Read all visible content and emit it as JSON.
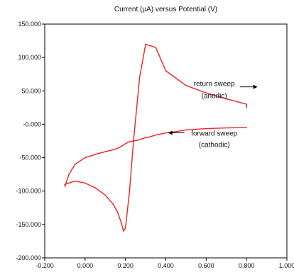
{
  "chart_data": {
    "type": "line",
    "title": "Current (µA) versus Potential (V)",
    "xlabel": "",
    "ylabel": "",
    "xlim": [
      -0.2,
      1.0
    ],
    "ylim": [
      -200,
      150
    ],
    "grid": false,
    "legend": "none",
    "x_ticks": [
      "-0.200",
      "0.000",
      "0.200",
      "0.400",
      "0.600",
      "0.800",
      "1.000"
    ],
    "y_ticks": [
      "150.000",
      "100.000",
      "50.000",
      "-0.000",
      "-50.000",
      "-100.000",
      "-150.000",
      "-200.000"
    ],
    "colors": {
      "curve": "#ee2222",
      "text": "#111111",
      "axis": "#000000"
    },
    "series": [
      {
        "x": [
          0.8,
          0.78,
          0.7,
          0.6,
          0.5,
          0.45,
          0.4,
          0.35,
          0.32,
          0.3,
          0.28,
          0.26,
          0.24,
          0.22,
          0.2,
          0.18,
          0.16,
          0.14,
          0.1,
          0.05,
          0.0,
          -0.05,
          -0.08,
          -0.1,
          -0.1,
          -0.05,
          0.0,
          0.05,
          0.1,
          0.14,
          0.16,
          0.18,
          0.19,
          0.2,
          0.22,
          0.24,
          0.27,
          0.3,
          0.35,
          0.4,
          0.5,
          0.6,
          0.7,
          0.8,
          0.8
        ],
        "y": [
          -5,
          -5,
          -5.5,
          -6.5,
          -8.5,
          -11,
          -13,
          -16,
          -19,
          -20,
          -22,
          -24,
          -25,
          -26,
          -29,
          -33,
          -36,
          -38,
          -41,
          -45,
          -50,
          -60,
          -75,
          -93,
          -90,
          -85,
          -88,
          -95,
          -106,
          -120,
          -131,
          -148,
          -160,
          -155,
          -100,
          -25,
          70,
          120,
          115,
          80,
          58,
          47,
          38,
          30,
          25
        ]
      }
    ],
    "annotations": [
      {
        "text": "return sweep",
        "x": 0.64,
        "y": 57,
        "arrow": "right"
      },
      {
        "text": "(anodic)",
        "x": 0.64,
        "y": 39,
        "arrow": "none"
      },
      {
        "text": "forward sweep",
        "x": 0.64,
        "y": -17,
        "arrow": "left"
      },
      {
        "text": "(cathodic)",
        "x": 0.64,
        "y": -34,
        "arrow": "none"
      }
    ]
  }
}
